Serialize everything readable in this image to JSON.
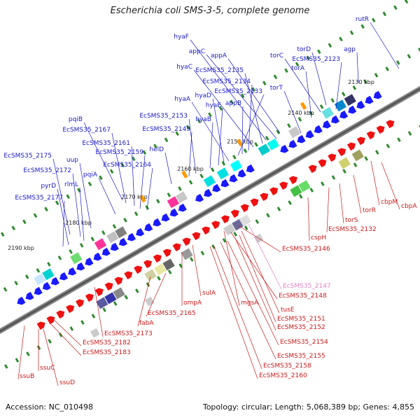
{
  "title": "Escherichia coli SMS-3-5, complete genome",
  "footer": {
    "accession": "Accession: NC_010498",
    "stats": "Topology: circular; Length: 5,068,389 bp; Genes: 4,855"
  },
  "colors": {
    "forward_label": "#1a1acc",
    "reverse_label": "#cc1a1a",
    "pseudo_label": "#e67fc3",
    "backbone": "#555555",
    "tick": "#2e8b2e"
  },
  "scale_ticks": [
    {
      "label": "2130 kbp",
      "value_kbp": 2130
    },
    {
      "label": "2140 kbp",
      "value_kbp": 2140
    },
    {
      "label": "2150 kbp",
      "value_kbp": 2150
    },
    {
      "label": "2160 kbp",
      "value_kbp": 2160
    },
    {
      "label": "2170 kbp",
      "value_kbp": 2170
    },
    {
      "label": "2180 kbp",
      "value_kbp": 2180
    },
    {
      "label": "2190 kbp",
      "value_kbp": 2190
    }
  ],
  "forward_genes": [
    "rutR",
    "agp",
    "torD",
    "EcSMS35_2123",
    "torC",
    "torA",
    "torT",
    "appA",
    "appC",
    "hyaF",
    "EcSMS35_2135",
    "hyaC",
    "EcSMS35_2134",
    "appB",
    "EcSMS35_2133",
    "hyaA",
    "hyaD",
    "hyaE",
    "hyaB",
    "EcSMS35_2153",
    "EcSMS35_2149",
    "helD",
    "pqiB",
    "EcSMS35_2167",
    "EcSMS35_2161",
    "EcSMS35_2159",
    "EcSMS35_2164",
    "pqiA",
    "EcSMS35_2175",
    "EcSMS35_2172",
    "uup",
    "pyrD",
    "rlmL",
    "EcSMS35_2177"
  ],
  "reverse_genes": [
    "cbpM",
    "cbpA",
    "torR",
    "torS",
    "EcSMS35_2132",
    "cspH",
    "EcSMS35_2146",
    "EcSMS35_2147",
    "EcSMS35_2148",
    "mgsA",
    "tusE",
    "EcSMS35_2151",
    "EcSMS35_2152",
    "EcSMS35_2154",
    "EcSMS35_2155",
    "EcSMS35_2158",
    "EcSMS35_2160",
    "sulA",
    "ompA",
    "EcSMS35_2165",
    "fabA",
    "EcSMS35_2173",
    "EcSMS35_2182",
    "EcSMS35_2183",
    "ssuB",
    "ssuC",
    "ssuD"
  ],
  "pseudo_genes": [
    "EcSMS35_2147"
  ]
}
